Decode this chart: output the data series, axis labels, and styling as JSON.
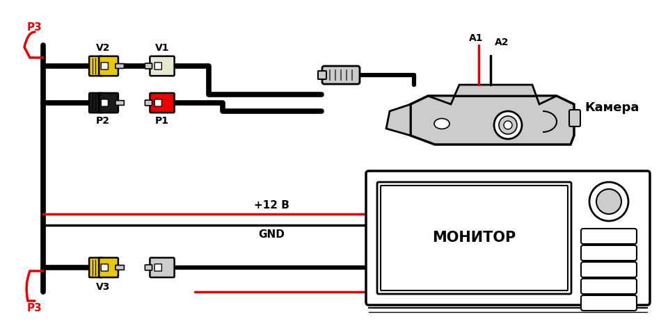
{
  "bg_color": "#ffffff",
  "line_color": "#000000",
  "red_color": "#ee0000",
  "yellow_color": "#e8c800",
  "dark_yellow": "#b8a000",
  "gray_color": "#aaaaaa",
  "light_gray": "#cccccc",
  "mid_gray": "#999999",
  "dark_gray": "#555555",
  "labels": {
    "P3_top": "P3",
    "P3_bottom": "P3",
    "V1": "V1",
    "V2": "V2",
    "P1": "P1",
    "P2": "P2",
    "V3": "V3",
    "A1": "A1",
    "A2": "A2",
    "camera": "Камера",
    "monitor": "МОНИТОР",
    "plus12v": "+12 В",
    "gnd": "GND"
  }
}
